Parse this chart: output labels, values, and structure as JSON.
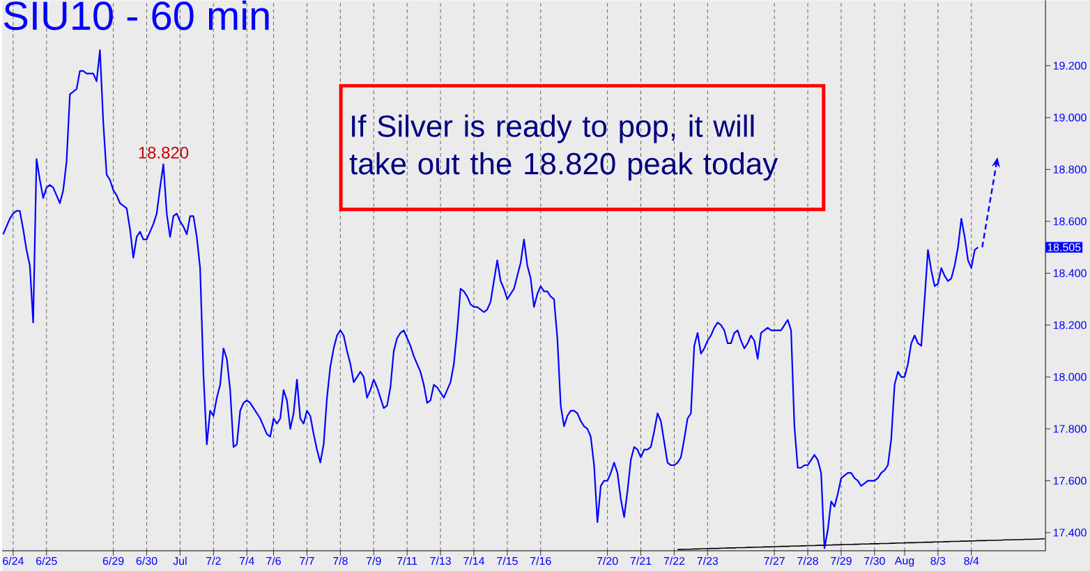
{
  "chart_data": {
    "type": "line",
    "title": "SIU10 - 60 min",
    "categories": [
      null,
      null,
      null,
      "6/24",
      null,
      null,
      null,
      null,
      null,
      null,
      null,
      null,
      null,
      "6/25",
      null,
      null,
      null,
      null,
      null,
      null,
      null,
      null,
      null,
      null,
      null,
      null,
      null,
      null,
      null,
      null,
      null,
      null,
      null,
      "6/29",
      null,
      null,
      null,
      null,
      null,
      null,
      null,
      null,
      null,
      "6/30",
      null,
      null,
      null,
      null,
      null,
      null,
      null,
      null,
      null,
      "Jul",
      null,
      null,
      null,
      null,
      null,
      null,
      null,
      null,
      null,
      "7/2",
      null,
      null,
      null,
      null,
      null,
      null,
      null,
      null,
      null,
      "7/4",
      null,
      null,
      null,
      null,
      null,
      null,
      null,
      "7/6",
      null,
      null,
      null,
      null,
      null,
      null,
      null,
      null,
      null,
      "7/7",
      null,
      null,
      null,
      null,
      null,
      null,
      null,
      null,
      null,
      "7/8",
      null,
      null,
      null,
      null,
      null,
      null,
      null,
      null,
      null,
      "7/9",
      null,
      null,
      null,
      null,
      null,
      null,
      null,
      null,
      null,
      "7/11",
      null,
      null,
      null,
      null,
      null,
      null,
      null,
      null,
      null,
      "7/13",
      null,
      null,
      null,
      null,
      null,
      null,
      null,
      null,
      null,
      "7/14",
      null,
      null,
      null,
      null,
      null,
      null,
      null,
      null,
      null,
      "7/15",
      null,
      null,
      null,
      null,
      null,
      null,
      null,
      null,
      null,
      "7/16",
      null,
      null,
      null,
      null,
      null,
      null,
      null,
      null,
      null,
      null,
      null,
      null,
      null,
      null,
      null,
      null,
      null,
      null,
      null,
      "7/20",
      null,
      null,
      null,
      null,
      null,
      null,
      null,
      null,
      null,
      "7/21",
      null,
      null,
      null,
      null,
      null,
      null,
      null,
      null,
      null,
      "7/22",
      null,
      null,
      null,
      null,
      null,
      null,
      null,
      null,
      null,
      "7/23",
      null,
      null,
      null,
      null,
      null,
      null,
      null,
      null,
      null,
      null,
      null,
      null,
      null,
      null,
      null,
      null,
      null,
      null,
      null,
      "7/27",
      null,
      null,
      null,
      null,
      null,
      null,
      null,
      null,
      null,
      "7/28",
      null,
      null,
      null,
      null,
      null,
      null,
      null,
      null,
      null,
      "7/29",
      null,
      null,
      null,
      null,
      null,
      null,
      null,
      null,
      null,
      "7/30",
      null,
      null,
      null,
      null,
      null,
      null,
      null,
      null,
      "Aug",
      null,
      null,
      null,
      null,
      null,
      null,
      null,
      null,
      null,
      "8/3",
      null,
      null,
      null,
      null,
      null,
      null,
      null,
      null,
      null,
      "8/4",
      null,
      null,
      null,
      null,
      null,
      null,
      null,
      null,
      null,
      null,
      null,
      null,
      null,
      null,
      null,
      null,
      null,
      null,
      null,
      null,
      null,
      null
    ],
    "ylim": [
      17.33,
      19.452
    ],
    "yticks": [
      {
        "value": 17.4,
        "label": "17.400"
      },
      {
        "value": 17.6,
        "label": "17.600"
      },
      {
        "value": 17.8,
        "label": "17.800"
      },
      {
        "value": 18.0,
        "label": "18.000"
      },
      {
        "value": 18.2,
        "label": "18.200"
      },
      {
        "value": 18.4,
        "label": "18.400"
      },
      {
        "value": 18.6,
        "label": "18.600"
      },
      {
        "value": 18.8,
        "label": "18.800"
      },
      {
        "value": 19.0,
        "label": "19.000"
      },
      {
        "value": 19.2,
        "label": "19.200"
      }
    ],
    "grid": "x",
    "series": [
      {
        "color": "#0000ff",
        "values": [
          18.55,
          18.58,
          18.61,
          18.63,
          18.64,
          18.64,
          18.57,
          18.49,
          18.43,
          18.21,
          18.84,
          18.76,
          18.69,
          18.73,
          18.74,
          18.73,
          18.7,
          18.67,
          18.72,
          18.83,
          19.09,
          19.1,
          19.11,
          19.18,
          19.18,
          19.17,
          19.17,
          19.17,
          19.14,
          19.26,
          18.98,
          18.78,
          18.76,
          18.72,
          18.7,
          18.67,
          18.66,
          18.65,
          18.57,
          18.46,
          18.54,
          18.56,
          18.53,
          18.53,
          18.56,
          18.59,
          18.63,
          18.73,
          18.82,
          18.63,
          18.54,
          18.62,
          18.63,
          18.6,
          18.58,
          18.55,
          18.62,
          18.62,
          18.54,
          18.42,
          18.01,
          17.74,
          17.87,
          17.85,
          17.92,
          17.97,
          18.11,
          18.07,
          17.95,
          17.73,
          17.74,
          17.87,
          17.9,
          17.91,
          17.9,
          17.88,
          17.86,
          17.84,
          17.81,
          17.78,
          17.77,
          17.84,
          17.82,
          17.84,
          17.95,
          17.91,
          17.8,
          17.86,
          17.99,
          17.84,
          17.82,
          17.87,
          17.85,
          17.78,
          17.72,
          17.67,
          17.74,
          17.92,
          18.04,
          18.11,
          18.16,
          18.18,
          18.16,
          18.1,
          18.05,
          17.98,
          18.0,
          18.02,
          18.0,
          17.92,
          17.95,
          17.99,
          17.96,
          17.92,
          17.88,
          17.89,
          17.96,
          18.1,
          18.15,
          18.17,
          18.18,
          18.15,
          18.12,
          18.08,
          18.05,
          18.02,
          17.97,
          17.9,
          17.91,
          17.97,
          17.96,
          17.94,
          17.92,
          17.95,
          17.98,
          18.05,
          18.18,
          18.34,
          18.33,
          18.31,
          18.28,
          18.27,
          18.27,
          18.26,
          18.25,
          18.26,
          18.29,
          18.37,
          18.45,
          18.37,
          18.34,
          18.3,
          18.32,
          18.34,
          18.39,
          18.44,
          18.53,
          18.43,
          18.38,
          18.27,
          18.32,
          18.35,
          18.33,
          18.33,
          18.31,
          18.3,
          18.15,
          17.89,
          17.81,
          17.85,
          17.87,
          17.87,
          17.86,
          17.83,
          17.81,
          17.8,
          17.77,
          17.66,
          17.44,
          17.58,
          17.6,
          17.6,
          17.63,
          17.67,
          17.63,
          17.53,
          17.46,
          17.56,
          17.68,
          17.73,
          17.72,
          17.69,
          17.72,
          17.72,
          17.73,
          17.79,
          17.86,
          17.83,
          17.75,
          17.67,
          17.66,
          17.66,
          17.67,
          17.69,
          17.76,
          17.84,
          17.86,
          18.12,
          18.17,
          18.09,
          18.11,
          18.14,
          18.16,
          18.19,
          18.21,
          18.2,
          18.18,
          18.13,
          18.13,
          18.17,
          18.18,
          18.14,
          18.11,
          18.13,
          18.16,
          18.14,
          18.07,
          18.17,
          18.18,
          18.19,
          18.18,
          18.18,
          18.18,
          18.18,
          18.2,
          18.22,
          18.18,
          17.81,
          17.65,
          17.65,
          17.66,
          17.66,
          17.68,
          17.7,
          17.68,
          17.63,
          17.34,
          17.41,
          17.52,
          17.5,
          17.55,
          17.61,
          17.62,
          17.63,
          17.63,
          17.61,
          17.6,
          17.58,
          17.59,
          17.6,
          17.6,
          17.6,
          17.61,
          17.63,
          17.64,
          17.66,
          17.76,
          17.97,
          18.02,
          18.0,
          18.0,
          18.05,
          18.13,
          18.16,
          18.13,
          18.12,
          18.3,
          18.49,
          18.41,
          18.35,
          18.36,
          18.42,
          18.39,
          18.37,
          18.38,
          18.43,
          18.5,
          18.61,
          18.54,
          18.45,
          18.42,
          18.49,
          18.5,
          null,
          null,
          null,
          null,
          null,
          null,
          null,
          null,
          null,
          null,
          null,
          null,
          null,
          null,
          null,
          null,
          null,
          null,
          null,
          null
        ]
      },
      {
        "color": "#000000",
        "values": [
          null,
          null,
          null,
          null,
          null,
          null,
          null,
          null,
          null,
          null,
          null,
          null,
          null,
          null,
          null,
          null,
          null,
          null,
          null,
          null,
          null,
          null,
          null,
          null,
          null,
          null,
          null,
          null,
          null,
          null,
          null,
          null,
          null,
          null,
          null,
          null,
          null,
          null,
          null,
          null,
          null,
          null,
          null,
          null,
          null,
          null,
          null,
          null,
          null,
          null,
          null,
          null,
          null,
          null,
          null,
          null,
          null,
          null,
          null,
          null,
          null,
          null,
          null,
          null,
          null,
          null,
          null,
          null,
          null,
          null,
          null,
          null,
          null,
          null,
          null,
          null,
          null,
          null,
          null,
          null,
          null,
          null,
          null,
          null,
          null,
          null,
          null,
          null,
          null,
          null,
          null,
          null,
          null,
          null,
          null,
          null,
          null,
          null,
          null,
          null,
          null,
          null,
          null,
          null,
          null,
          null,
          null,
          null,
          null,
          null,
          null,
          null,
          null,
          null,
          null,
          null,
          null,
          null,
          null,
          null,
          null,
          null,
          null,
          null,
          null,
          null,
          null,
          null,
          null,
          null,
          null,
          null,
          null,
          null,
          null,
          null,
          null,
          null,
          null,
          null,
          null,
          null,
          null,
          null,
          null,
          null,
          null,
          null,
          null,
          null,
          null,
          null,
          null,
          null,
          null,
          null,
          null,
          null,
          null,
          null,
          null,
          null,
          null,
          null,
          null,
          null,
          null,
          null,
          null,
          null,
          null,
          null,
          null,
          null,
          null,
          null,
          null,
          null,
          null,
          null,
          null,
          null,
          null,
          null,
          null,
          null,
          null,
          null,
          null,
          null,
          null,
          null,
          null,
          null,
          null,
          null,
          null,
          null,
          null,
          null,
          null,
          null,
          17.335,
          17.335,
          17.336,
          17.336,
          17.336,
          17.337,
          17.337,
          17.338,
          17.338,
          17.338,
          17.339,
          17.339,
          17.339,
          17.34,
          17.34,
          17.341,
          17.341,
          17.341,
          17.342,
          17.342,
          17.342,
          17.343,
          17.343,
          17.344,
          17.344,
          17.344,
          17.345,
          17.345,
          17.345,
          17.346,
          17.346,
          17.347,
          17.347,
          17.347,
          17.348,
          17.348,
          17.348,
          17.349,
          17.349,
          17.35,
          17.35,
          17.35,
          17.351,
          17.351,
          17.351,
          17.352,
          17.352,
          17.353,
          17.353,
          17.353,
          17.354,
          17.354,
          17.354,
          17.355,
          17.355,
          17.356,
          17.356,
          17.356,
          17.357,
          17.357,
          17.357,
          17.358,
          17.358,
          17.358,
          17.359,
          17.359,
          17.36,
          17.36,
          17.36,
          17.361,
          17.361,
          17.361,
          17.362,
          17.362,
          17.363,
          17.363,
          17.363,
          17.364,
          17.364,
          17.364,
          17.365,
          17.365,
          17.366,
          17.366,
          17.366,
          17.367,
          17.367,
          17.367,
          17.368,
          17.368,
          17.369,
          17.369,
          17.369,
          17.37,
          17.37,
          17.37,
          17.371,
          17.371,
          17.372,
          17.372,
          17.372,
          17.373,
          17.373,
          17.373,
          17.374,
          17.374,
          17.374,
          17.375,
          17.375,
          17.376,
          17.376
        ]
      }
    ],
    "annotations": [
      {
        "text": "18.820",
        "y": 18.82
      },
      "If Silver is ready to pop, it will take out the 18.820 peak today",
      "18.505"
    ]
  }
}
